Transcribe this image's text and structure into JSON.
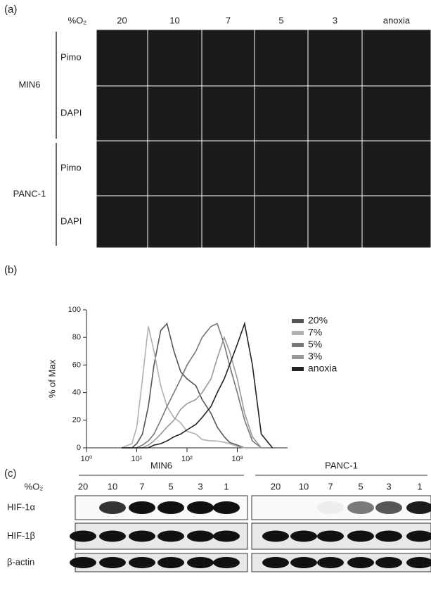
{
  "panel_a": {
    "label": "(a)",
    "o2_label": "%O₂",
    "conditions": [
      "20",
      "10",
      "7",
      "5",
      "3",
      "anoxia"
    ],
    "groups": [
      {
        "name": "MIN6",
        "rows": [
          "Pimo",
          "DAPI"
        ]
      },
      {
        "name": "PANC-1",
        "rows": [
          "Pimo",
          "DAPI"
        ]
      }
    ]
  },
  "chart_data": {
    "type": "line",
    "panel_label": "(b)",
    "ylabel": "% of Max",
    "log_x": true,
    "x": [
      5,
      8,
      10,
      13,
      17,
      22,
      30,
      40,
      55,
      75,
      100,
      150,
      200,
      300,
      400,
      550,
      700,
      1000,
      1400,
      2000,
      3000,
      5000
    ],
    "xlim": [
      1,
      10000
    ],
    "xticks": [
      {
        "value": 1,
        "label": "10⁰"
      },
      {
        "value": 10,
        "label": "10¹"
      },
      {
        "value": 100,
        "label": "10²"
      },
      {
        "value": 1000,
        "label": "10³"
      }
    ],
    "ylim": [
      0,
      100
    ],
    "yticks": [
      0,
      20,
      40,
      60,
      80,
      100
    ],
    "series": [
      {
        "name": "20%",
        "color": "#555555",
        "values": [
          0,
          0,
          3,
          10,
          30,
          60,
          85,
          90,
          70,
          55,
          50,
          45,
          35,
          25,
          15,
          8,
          4,
          2,
          0,
          0,
          0,
          0
        ]
      },
      {
        "name": "7%",
        "color": "#b0b0b0",
        "values": [
          0,
          3,
          15,
          50,
          88,
          70,
          45,
          30,
          22,
          18,
          12,
          10,
          6,
          5,
          5,
          4,
          3,
          1,
          0,
          0,
          0,
          0
        ]
      },
      {
        "name": "5%",
        "color": "#777777",
        "values": [
          0,
          0,
          0,
          2,
          5,
          10,
          20,
          30,
          40,
          50,
          60,
          70,
          80,
          88,
          90,
          75,
          60,
          40,
          20,
          5,
          0,
          0
        ]
      },
      {
        "name": "3%",
        "color": "#999999",
        "values": [
          0,
          0,
          0,
          0,
          2,
          5,
          10,
          15,
          20,
          28,
          32,
          35,
          40,
          50,
          65,
          80,
          70,
          50,
          25,
          8,
          0,
          0
        ]
      },
      {
        "name": "anoxia",
        "color": "#222222",
        "values": [
          0,
          0,
          0,
          0,
          0,
          2,
          3,
          5,
          8,
          10,
          13,
          17,
          22,
          30,
          40,
          50,
          60,
          75,
          90,
          60,
          10,
          0
        ]
      }
    ]
  },
  "panel_c": {
    "label": "(c)",
    "o2_label": "%O₂",
    "groups": [
      {
        "name": "MIN6",
        "lanes": [
          "20",
          "10",
          "7",
          "5",
          "3",
          "1"
        ]
      },
      {
        "name": "PANC-1",
        "lanes": [
          "20",
          "10",
          "7",
          "5",
          "3",
          "1"
        ]
      }
    ],
    "rows": [
      "HIF-1α",
      "HIF-1β",
      "β-actin"
    ]
  }
}
